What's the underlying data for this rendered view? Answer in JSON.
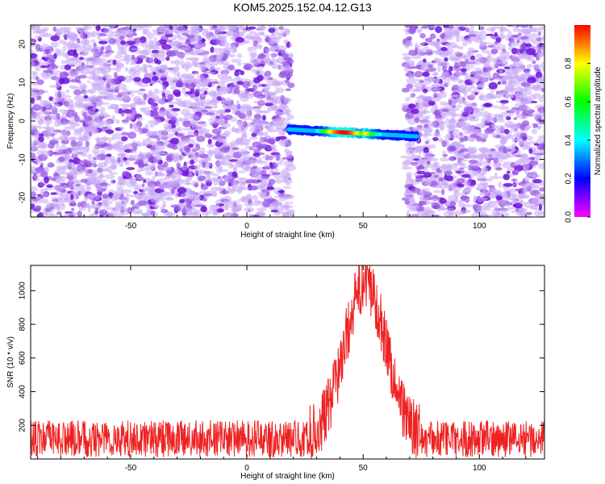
{
  "figure": {
    "title": "KOM5.2025.152.04.12.G13"
  },
  "chart_data": [
    {
      "type": "heatmap",
      "xlabel": "Height of straight line (km)",
      "ylabel": "Frequency (Hz)",
      "xlim": [
        -93,
        128
      ],
      "ylim": [
        -25,
        25
      ],
      "xticks": [
        -50,
        0,
        50,
        100
      ],
      "yticks": [
        -20,
        -10,
        0,
        10,
        20
      ],
      "colorbar": {
        "label": "Normalized spectral amplitude",
        "range": [
          0,
          1
        ],
        "ticks": [
          0.0,
          0.2,
          0.4,
          0.6,
          0.8
        ],
        "tick_labels": [
          "0.0",
          "0.2",
          "0.4",
          "0.6",
          "0.8"
        ],
        "colormap": [
          "#ff00ff",
          "#0000ff",
          "#00ffff",
          "#00ff00",
          "#ffff00",
          "#ff0000"
        ]
      },
      "noise_regions": [
        [
          -93,
          19
        ],
        [
          68,
          128
        ]
      ],
      "empty_region": [
        19,
        68
      ],
      "signal_trace": {
        "x_start": 18,
        "x_end": 73,
        "freq_start": -2.2,
        "freq_end": -4.0,
        "peak_x": 42,
        "peak_amplitude": 1.0
      }
    },
    {
      "type": "line",
      "xlabel": "Height of straight line (km)",
      "ylabel": "SNR (10 * v/v)",
      "xlim": [
        -93,
        128
      ],
      "ylim": [
        0,
        1150
      ],
      "xticks": [
        -50,
        0,
        50,
        100
      ],
      "yticks": [
        200,
        400,
        600,
        800,
        1000
      ],
      "color": "#ee2222",
      "baseline": 120,
      "noise_amplitude": 110,
      "bump": {
        "center": 51,
        "width": 15,
        "peak": 920,
        "x_start": 27,
        "x_end": 75
      }
    }
  ]
}
